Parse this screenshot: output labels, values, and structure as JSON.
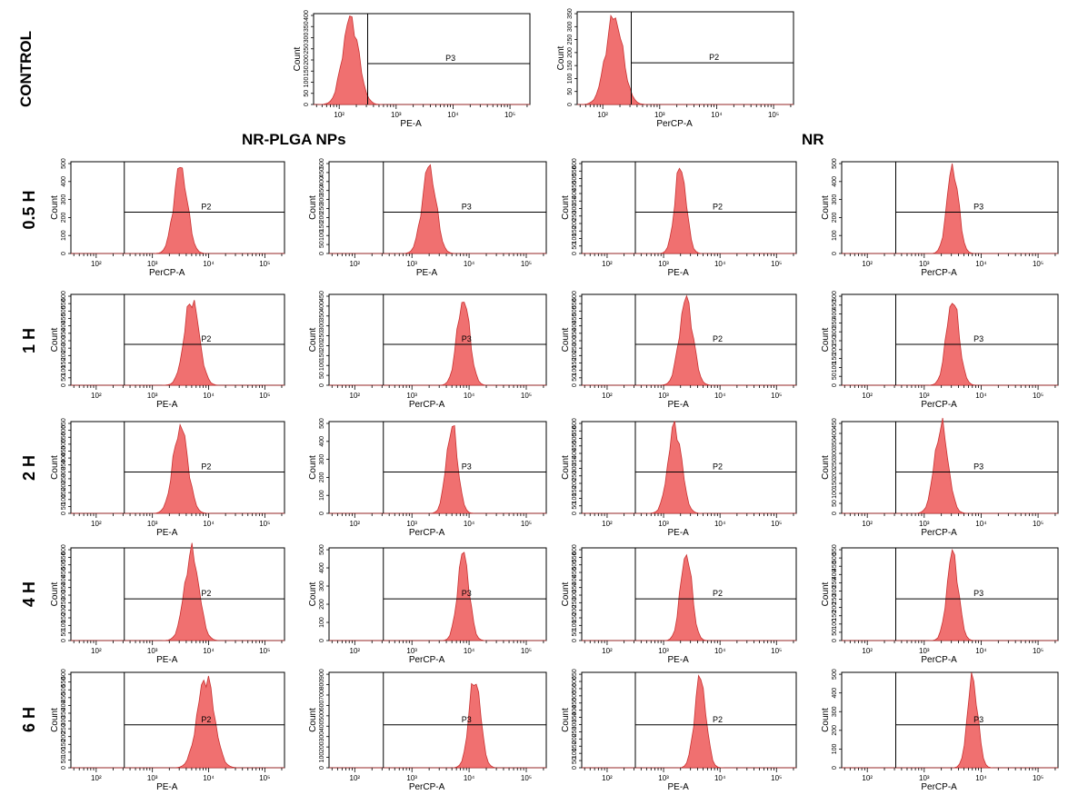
{
  "figure": {
    "row_labels": [
      "CONTROL",
      "0.5 H",
      "1 H",
      "2 H",
      "4 H",
      "6 H"
    ],
    "group_labels": [
      "NR-PLGA NPs",
      "NR"
    ]
  },
  "colors": {
    "histogram_fill": "#f07070",
    "histogram_stroke": "#c83030",
    "axis": "#000000"
  },
  "chart_data": [
    {
      "panel": "control-pe",
      "type": "histogram",
      "row": "CONTROL",
      "xlabel": "PE-A",
      "ylabel": "Count",
      "x_scale": "log",
      "x_ticks": [
        "10²",
        "10³",
        "10⁴",
        "10⁵"
      ],
      "y_ticks": [
        "0",
        "50",
        "100",
        "150",
        "200",
        "250",
        "300",
        "350",
        "400"
      ],
      "ylim": [
        0,
        400
      ],
      "gate": "P3",
      "gate_start": 2.5,
      "peak": 2.2,
      "spread": 0.14
    },
    {
      "panel": "control-percp",
      "type": "histogram",
      "row": "CONTROL",
      "xlabel": "PerCP-A",
      "ylabel": "Count",
      "x_scale": "log",
      "x_ticks": [
        "10²",
        "10³",
        "10⁴",
        "10⁵"
      ],
      "y_ticks": [
        "0",
        "50",
        "100",
        "150",
        "200",
        "250",
        "300",
        "350"
      ],
      "ylim": [
        0,
        350
      ],
      "gate": "P2",
      "gate_start": 2.5,
      "peak": 2.2,
      "spread": 0.15
    },
    {
      "panel": "0.5h-1",
      "type": "histogram",
      "row": "0.5 H",
      "xlabel": "PerCP-A",
      "ylabel": "Count",
      "x_scale": "log",
      "x_ticks": [
        "10²",
        "10³",
        "10⁴",
        "10⁵"
      ],
      "y_ticks": [
        "0",
        "100",
        "200",
        "300",
        "400",
        "500"
      ],
      "ylim": [
        0,
        500
      ],
      "gate": "P2",
      "gate_start": 2.5,
      "peak": 3.5,
      "spread": 0.12
    },
    {
      "panel": "0.5h-2",
      "type": "histogram",
      "row": "0.5 H",
      "xlabel": "PE-A",
      "ylabel": "Count",
      "x_scale": "log",
      "x_ticks": [
        "10²",
        "10³",
        "10⁴",
        "10⁵"
      ],
      "y_ticks": [
        "0",
        "50",
        "100",
        "150",
        "200",
        "250",
        "300",
        "350",
        "400",
        "450",
        "500"
      ],
      "ylim": [
        0,
        500
      ],
      "gate": "P3",
      "gate_start": 2.5,
      "peak": 3.3,
      "spread": 0.12
    },
    {
      "panel": "0.5h-3",
      "type": "histogram",
      "row": "0.5 H",
      "xlabel": "PE-A",
      "ylabel": "Count",
      "x_scale": "log",
      "x_ticks": [
        "10²",
        "10³",
        "10⁴",
        "10⁵"
      ],
      "y_ticks": [
        "0",
        "50",
        "100",
        "150",
        "200",
        "250",
        "300",
        "350",
        "400",
        "450",
        "500",
        "550",
        "600"
      ],
      "ylim": [
        0,
        600
      ],
      "gate": "P2",
      "gate_start": 2.5,
      "peak": 3.3,
      "spread": 0.1
    },
    {
      "panel": "0.5h-4",
      "type": "histogram",
      "row": "0.5 H",
      "xlabel": "PerCP-A",
      "ylabel": "Count",
      "x_scale": "log",
      "x_ticks": [
        "10²",
        "10³",
        "10⁴",
        "10⁵"
      ],
      "y_ticks": [
        "0",
        "100",
        "200",
        "300",
        "400",
        "500"
      ],
      "ylim": [
        0,
        500
      ],
      "gate": "P3",
      "gate_start": 2.5,
      "peak": 3.5,
      "spread": 0.1
    },
    {
      "panel": "1h-1",
      "type": "histogram",
      "row": "1 H",
      "xlabel": "PE-A",
      "ylabel": "Count",
      "x_scale": "log",
      "x_ticks": [
        "10²",
        "10³",
        "10⁴",
        "10⁵"
      ],
      "y_ticks": [
        "0",
        "50",
        "100",
        "150",
        "200",
        "250",
        "300",
        "350",
        "400",
        "450",
        "500",
        "550",
        "600"
      ],
      "ylim": [
        0,
        600
      ],
      "gate": "P2",
      "gate_start": 2.5,
      "peak": 3.7,
      "spread": 0.13
    },
    {
      "panel": "1h-2",
      "type": "histogram",
      "row": "1 H",
      "xlabel": "PerCP-A",
      "ylabel": "Count",
      "x_scale": "log",
      "x_ticks": [
        "10²",
        "10³",
        "10⁴",
        "10⁵"
      ],
      "y_ticks": [
        "0",
        "50",
        "100",
        "150",
        "200",
        "250",
        "300",
        "350",
        "400",
        "450"
      ],
      "ylim": [
        0,
        450
      ],
      "gate": "P3",
      "gate_start": 2.5,
      "peak": 3.9,
      "spread": 0.11
    },
    {
      "panel": "1h-3",
      "type": "histogram",
      "row": "1 H",
      "xlabel": "PE-A",
      "ylabel": "Count",
      "x_scale": "log",
      "x_ticks": [
        "10²",
        "10³",
        "10⁴",
        "10⁵"
      ],
      "y_ticks": [
        "0",
        "50",
        "100",
        "150",
        "200",
        "250",
        "300",
        "350",
        "400",
        "450",
        "500",
        "550",
        "600"
      ],
      "ylim": [
        0,
        600
      ],
      "gate": "P2",
      "gate_start": 2.5,
      "peak": 3.4,
      "spread": 0.12
    },
    {
      "panel": "1h-4",
      "type": "histogram",
      "row": "1 H",
      "xlabel": "PerCP-A",
      "ylabel": "Count",
      "x_scale": "log",
      "x_ticks": [
        "10²",
        "10³",
        "10⁴",
        "10⁵"
      ],
      "y_ticks": [
        "0",
        "50",
        "100",
        "150",
        "200",
        "250",
        "300",
        "350",
        "400",
        "450",
        "500"
      ],
      "ylim": [
        0,
        500
      ],
      "gate": "P3",
      "gate_start": 2.5,
      "peak": 3.5,
      "spread": 0.11
    },
    {
      "panel": "2h-1",
      "type": "histogram",
      "row": "2 H",
      "xlabel": "PE-A",
      "ylabel": "Count",
      "x_scale": "log",
      "x_ticks": [
        "10²",
        "10³",
        "10⁴",
        "10⁵"
      ],
      "y_ticks": [
        "0",
        "50",
        "100",
        "150",
        "200",
        "250",
        "300",
        "350",
        "400",
        "450",
        "500",
        "550",
        "600",
        "650"
      ],
      "ylim": [
        0,
        650
      ],
      "gate": "P2",
      "gate_start": 2.5,
      "peak": 3.5,
      "spread": 0.13
    },
    {
      "panel": "2h-2",
      "type": "histogram",
      "row": "2 H",
      "xlabel": "PerCP-A",
      "ylabel": "Count",
      "x_scale": "log",
      "x_ticks": [
        "10²",
        "10³",
        "10⁴",
        "10⁵"
      ],
      "y_ticks": [
        "0",
        "100",
        "200",
        "300",
        "400",
        "500"
      ],
      "ylim": [
        0,
        500
      ],
      "gate": "P3",
      "gate_start": 2.5,
      "peak": 3.7,
      "spread": 0.1
    },
    {
      "panel": "2h-3",
      "type": "histogram",
      "row": "2 H",
      "xlabel": "PE-A",
      "ylabel": "Count",
      "x_scale": "log",
      "x_ticks": [
        "10²",
        "10³",
        "10⁴",
        "10⁵"
      ],
      "y_ticks": [
        "0",
        "50",
        "100",
        "150",
        "200",
        "250",
        "300",
        "350",
        "400",
        "450",
        "500",
        "550",
        "600"
      ],
      "ylim": [
        0,
        600
      ],
      "gate": "P2",
      "gate_start": 2.5,
      "peak": 3.2,
      "spread": 0.12
    },
    {
      "panel": "2h-4",
      "type": "histogram",
      "row": "2 H",
      "xlabel": "PerCP-A",
      "ylabel": "Count",
      "x_scale": "log",
      "x_ticks": [
        "10²",
        "10³",
        "10⁴",
        "10⁵"
      ],
      "y_ticks": [
        "0",
        "50",
        "100",
        "150",
        "200",
        "250",
        "300",
        "350",
        "400",
        "450"
      ],
      "ylim": [
        0,
        450
      ],
      "gate": "P3",
      "gate_start": 2.5,
      "peak": 3.3,
      "spread": 0.12
    },
    {
      "panel": "4h-1",
      "type": "histogram",
      "row": "4 H",
      "xlabel": "PE-A",
      "ylabel": "Count",
      "x_scale": "log",
      "x_ticks": [
        "10²",
        "10³",
        "10⁴",
        "10⁵"
      ],
      "y_ticks": [
        "0",
        "50",
        "100",
        "150",
        "200",
        "250",
        "300",
        "350",
        "400",
        "450",
        "500",
        "550",
        "600"
      ],
      "ylim": [
        0,
        600
      ],
      "gate": "P2",
      "gate_start": 2.5,
      "peak": 3.7,
      "spread": 0.13
    },
    {
      "panel": "4h-2",
      "type": "histogram",
      "row": "4 H",
      "xlabel": "PerCP-A",
      "ylabel": "Count",
      "x_scale": "log",
      "x_ticks": [
        "10²",
        "10³",
        "10⁴",
        "10⁵"
      ],
      "y_ticks": [
        "0",
        "100",
        "200",
        "300",
        "400",
        "500"
      ],
      "ylim": [
        0,
        500
      ],
      "gate": "P3",
      "gate_start": 2.5,
      "peak": 3.9,
      "spread": 0.1
    },
    {
      "panel": "4h-3",
      "type": "histogram",
      "row": "4 H",
      "xlabel": "PE-A",
      "ylabel": "Count",
      "x_scale": "log",
      "x_ticks": [
        "10²",
        "10³",
        "10⁴",
        "10⁵"
      ],
      "y_ticks": [
        "0",
        "50",
        "100",
        "150",
        "200",
        "250",
        "300",
        "350",
        "400",
        "450",
        "500",
        "550",
        "600"
      ],
      "ylim": [
        0,
        600
      ],
      "gate": "P2",
      "gate_start": 2.5,
      "peak": 3.4,
      "spread": 0.1
    },
    {
      "panel": "4h-4",
      "type": "histogram",
      "row": "4 H",
      "xlabel": "PerCP-A",
      "ylabel": "Count",
      "x_scale": "log",
      "x_ticks": [
        "10²",
        "10³",
        "10⁴",
        "10⁵"
      ],
      "y_ticks": [
        "0",
        "50",
        "100",
        "150",
        "200",
        "250",
        "300",
        "350",
        "400",
        "450",
        "500",
        "550"
      ],
      "ylim": [
        0,
        550
      ],
      "gate": "P3",
      "gate_start": 2.5,
      "peak": 3.5,
      "spread": 0.1
    },
    {
      "panel": "6h-1",
      "type": "histogram",
      "row": "6 H",
      "xlabel": "PE-A",
      "ylabel": "Count",
      "x_scale": "log",
      "x_ticks": [
        "10²",
        "10³",
        "10⁴",
        "10⁵"
      ],
      "y_ticks": [
        "0",
        "50",
        "100",
        "150",
        "200",
        "250",
        "300",
        "350",
        "400",
        "450",
        "500",
        "550",
        "600"
      ],
      "ylim": [
        0,
        600
      ],
      "gate": "P2",
      "gate_start": 2.5,
      "peak": 3.95,
      "spread": 0.15
    },
    {
      "panel": "6h-2",
      "type": "histogram",
      "row": "6 H",
      "xlabel": "PerCP-A",
      "ylabel": "Count",
      "x_scale": "log",
      "x_ticks": [
        "10²",
        "10³",
        "10⁴",
        "10⁵"
      ],
      "y_ticks": [
        "0",
        "100",
        "200",
        "300",
        "400",
        "500",
        "600",
        "700",
        "800",
        "900"
      ],
      "ylim": [
        0,
        900
      ],
      "gate": "P3",
      "gate_start": 2.5,
      "peak": 4.1,
      "spread": 0.1
    },
    {
      "panel": "6h-3",
      "type": "histogram",
      "row": "6 H",
      "xlabel": "PE-A",
      "ylabel": "Count",
      "x_scale": "log",
      "x_ticks": [
        "10²",
        "10³",
        "10⁴",
        "10⁵"
      ],
      "y_ticks": [
        "0",
        "50",
        "100",
        "150",
        "200",
        "250",
        "300",
        "350",
        "400",
        "450",
        "500",
        "550",
        "600",
        "650"
      ],
      "ylim": [
        0,
        650
      ],
      "gate": "P2",
      "gate_start": 2.5,
      "peak": 3.65,
      "spread": 0.1
    },
    {
      "panel": "6h-4",
      "type": "histogram",
      "row": "6 H",
      "xlabel": "PerCP-A",
      "ylabel": "Count",
      "x_scale": "log",
      "x_ticks": [
        "10²",
        "10³",
        "10⁴",
        "10⁵"
      ],
      "y_ticks": [
        "0",
        "100",
        "200",
        "300",
        "400",
        "500"
      ],
      "ylim": [
        0,
        500
      ],
      "gate": "P3",
      "gate_start": 2.5,
      "peak": 3.85,
      "spread": 0.09
    }
  ]
}
